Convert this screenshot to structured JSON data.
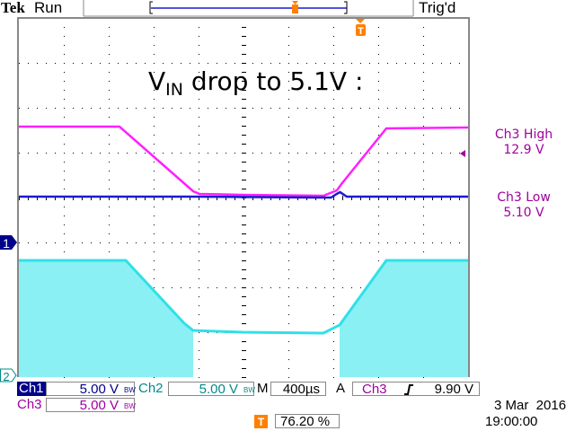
{
  "header": {
    "brand": "Tek",
    "state": "Run",
    "trigger_status": "Trig'd"
  },
  "annotation": {
    "title_main": "V",
    "title_sub": "IN",
    "title_rest": " drop to 5.1V :"
  },
  "cursor_readout": {
    "high_label": "Ch3 High",
    "high_value": "12.9 V",
    "low_label": "Ch3 Low",
    "low_value": "5.10 V"
  },
  "markers": {
    "ch1": "1",
    "ch2": "2",
    "trigger": "T"
  },
  "readout": {
    "ch1_label": "Ch1",
    "ch1_scale": "5.00 V",
    "ch2_label": "Ch2",
    "ch2_scale": "5.00 V",
    "ch3_label": "Ch3",
    "ch3_scale": "5.00 V",
    "bw": "BW",
    "timebase_label": "M",
    "timebase": "400µs",
    "trigger_mode": "A",
    "trigger_source": "Ch3",
    "trigger_slope": "rising-edge-icon",
    "trigger_level": "9.90 V",
    "trigger_position": "76.20 %",
    "date": "3 Mar  2016",
    "time": "19:00:00"
  },
  "colors": {
    "ch1": "#1a1ad0",
    "ch2": "#30e0e8",
    "ch2_fill": "#8af0f4",
    "ch3": "#ff20ff",
    "trigger": "#ff8000",
    "text_ch3": "#a000a0"
  },
  "chart_data": {
    "type": "line",
    "xlabel": "",
    "ylabel": "",
    "x_units": "µs (relative to trigger)",
    "time_per_div": "400µs",
    "volts_per_div": "5.00 V",
    "xlim": [
      -3040,
      960
    ],
    "grid": true,
    "series": [
      {
        "name": "Ch3",
        "color": "#ff20ff",
        "x": [
          -3040,
          -2144,
          -1488,
          -1432,
          -1048,
          -328,
          -208,
          -168,
          232,
          960
        ],
        "y": [
          12.9,
          12.9,
          5.7,
          5.4,
          5.3,
          5.2,
          5.8,
          6.5,
          12.7,
          12.8
        ]
      },
      {
        "name": "Ch1",
        "color": "#1a1ad0",
        "x": [
          -3040,
          -1440,
          -400,
          -260,
          -210,
          -180,
          -120,
          960
        ],
        "y": [
          5.1,
          5.1,
          5.0,
          5.0,
          5.4,
          5.6,
          5.1,
          5.1
        ]
      },
      {
        "name": "Ch2",
        "color": "#30e0e8",
        "x": [
          -3040,
          -2088,
          -1568,
          -1488,
          -1048,
          -328,
          -184,
          232,
          960
        ],
        "y": [
          13.0,
          13.0,
          6.0,
          5.2,
          5.0,
          4.9,
          5.8,
          13.0,
          13.0
        ],
        "switching_noise_band": [
          [
            -3040,
            -1488
          ],
          [
            -184,
            960
          ]
        ]
      }
    ]
  }
}
